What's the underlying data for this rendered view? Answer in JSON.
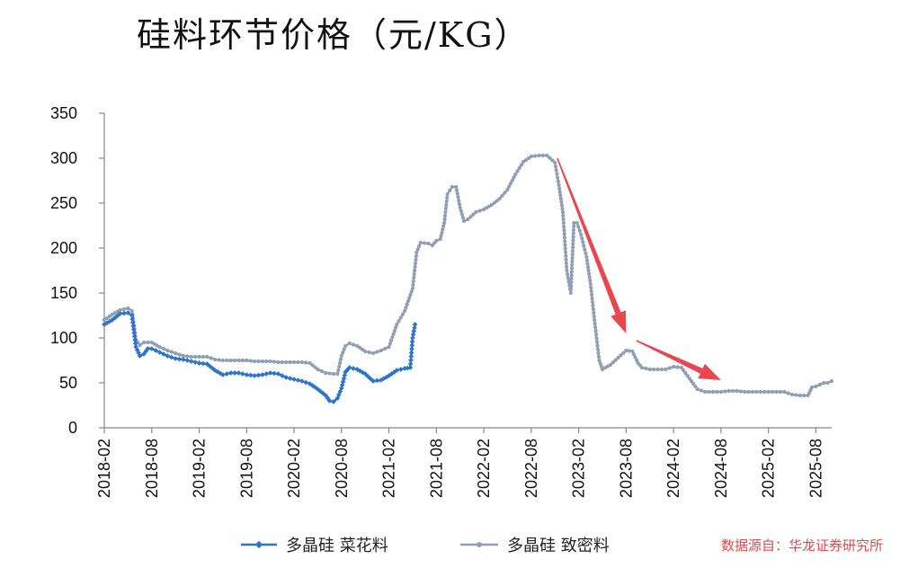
{
  "chart_data": {
    "type": "line",
    "title": "硅料环节价格（元/KG）",
    "xlabel": "",
    "ylabel": "",
    "ylim": [
      0,
      350
    ],
    "yticks": [
      0,
      50,
      100,
      150,
      200,
      250,
      300,
      350
    ],
    "x_start": "2018-02",
    "x_end": "2025-10",
    "xticks": [
      "2018-02",
      "2018-08",
      "2019-02",
      "2019-08",
      "2020-02",
      "2020-08",
      "2021-02",
      "2021-08",
      "2022-02",
      "2022-08",
      "2023-02",
      "2023-08",
      "2024-02",
      "2024-08",
      "2025-02",
      "2025-08"
    ],
    "grid": false,
    "legend_position": "bottom",
    "series": [
      {
        "name": "多晶硅 菜花料",
        "color": "#2E75C9",
        "marker": "diamond",
        "points": [
          [
            "2018-02",
            115
          ],
          [
            "2018-03",
            120
          ],
          [
            "2018-04",
            127
          ],
          [
            "2018-05",
            128
          ],
          [
            "2018-05.5",
            125
          ],
          [
            "2018-06",
            90
          ],
          [
            "2018-06.5",
            80
          ],
          [
            "2018-07",
            82
          ],
          [
            "2018-07.5",
            88
          ],
          [
            "2018-08",
            88
          ],
          [
            "2018-09",
            84
          ],
          [
            "2018-10",
            80
          ],
          [
            "2018-11",
            77
          ],
          [
            "2018-12",
            76
          ],
          [
            "2019-01",
            74
          ],
          [
            "2019-02",
            72
          ],
          [
            "2019-03",
            71
          ],
          [
            "2019-04",
            64
          ],
          [
            "2019-05",
            59
          ],
          [
            "2019-06",
            61
          ],
          [
            "2019-07",
            61
          ],
          [
            "2019-08",
            59
          ],
          [
            "2019-09",
            58
          ],
          [
            "2019-10",
            59
          ],
          [
            "2019-11",
            61
          ],
          [
            "2019-12",
            60
          ],
          [
            "2020-01",
            56
          ],
          [
            "2020-02",
            54
          ],
          [
            "2020-03",
            52
          ],
          [
            "2020-04",
            49
          ],
          [
            "2020-05",
            43
          ],
          [
            "2020-06",
            36
          ],
          [
            "2020-06.5",
            30
          ],
          [
            "2020-07",
            29
          ],
          [
            "2020-07.5",
            33
          ],
          [
            "2020-08",
            44
          ],
          [
            "2020-08.5",
            62
          ],
          [
            "2020-09",
            67
          ],
          [
            "2020-10",
            65
          ],
          [
            "2020-11",
            60
          ],
          [
            "2020-12",
            52
          ],
          [
            "2021-01",
            53
          ],
          [
            "2021-02",
            58
          ],
          [
            "2021-03",
            64
          ],
          [
            "2021-04",
            66
          ],
          [
            "2021-04.7",
            67
          ],
          [
            "2021-05",
            100
          ],
          [
            "2021-05.3",
            115
          ]
        ]
      },
      {
        "name": "多晶硅 致密料",
        "color": "#8FA0B5",
        "marker": "circle",
        "points": [
          [
            "2018-02",
            120
          ],
          [
            "2018-03",
            126
          ],
          [
            "2018-04",
            131
          ],
          [
            "2018-05",
            133
          ],
          [
            "2018-05.5",
            130
          ],
          [
            "2018-06",
            98
          ],
          [
            "2018-06.5",
            92
          ],
          [
            "2018-07",
            95
          ],
          [
            "2018-08",
            95
          ],
          [
            "2018-09",
            90
          ],
          [
            "2018-10",
            86
          ],
          [
            "2018-11",
            83
          ],
          [
            "2018-12",
            80
          ],
          [
            "2019-01",
            79
          ],
          [
            "2019-02",
            79
          ],
          [
            "2019-03",
            79
          ],
          [
            "2019-04",
            76
          ],
          [
            "2019-05",
            75
          ],
          [
            "2019-06",
            75
          ],
          [
            "2019-07",
            75
          ],
          [
            "2019-08",
            75
          ],
          [
            "2019-09",
            74
          ],
          [
            "2019-10",
            74
          ],
          [
            "2019-11",
            74
          ],
          [
            "2019-12",
            73
          ],
          [
            "2020-01",
            73
          ],
          [
            "2020-02",
            73
          ],
          [
            "2020-03",
            73
          ],
          [
            "2020-04",
            72
          ],
          [
            "2020-05",
            65
          ],
          [
            "2020-06",
            61
          ],
          [
            "2020-07",
            60
          ],
          [
            "2020-07.5",
            60
          ],
          [
            "2020-08",
            80
          ],
          [
            "2020-08.5",
            91
          ],
          [
            "2020-09",
            94
          ],
          [
            "2020-10",
            91
          ],
          [
            "2020-11",
            85
          ],
          [
            "2020-12",
            83
          ],
          [
            "2021-01",
            86
          ],
          [
            "2021-02",
            90
          ],
          [
            "2021-03",
            115
          ],
          [
            "2021-04",
            130
          ],
          [
            "2021-05",
            155
          ],
          [
            "2021-05.5",
            195
          ],
          [
            "2021-06",
            206
          ],
          [
            "2021-07",
            205
          ],
          [
            "2021-07.5",
            203
          ],
          [
            "2021-08",
            208
          ],
          [
            "2021-08.5",
            210
          ],
          [
            "2021-09",
            228
          ],
          [
            "2021-09.4",
            260
          ],
          [
            "2021-10",
            268
          ],
          [
            "2021-10.5",
            268
          ],
          [
            "2021-11",
            245
          ],
          [
            "2021-11.5",
            230
          ],
          [
            "2021-12",
            232
          ],
          [
            "2022-01",
            240
          ],
          [
            "2022-02",
            243
          ],
          [
            "2022-03",
            248
          ],
          [
            "2022-04",
            255
          ],
          [
            "2022-05",
            265
          ],
          [
            "2022-06",
            282
          ],
          [
            "2022-07",
            296
          ],
          [
            "2022-08",
            302
          ],
          [
            "2022-09",
            303
          ],
          [
            "2022-10",
            303
          ],
          [
            "2022-11",
            295
          ],
          [
            "2022-11.5",
            270
          ],
          [
            "2022-12",
            240
          ],
          [
            "2022-12.5",
            175
          ],
          [
            "2023-01",
            150
          ],
          [
            "2023-01.4",
            228
          ],
          [
            "2023-01.8",
            228
          ],
          [
            "2023-02.3",
            215
          ],
          [
            "2023-03",
            190
          ],
          [
            "2023-03.5",
            160
          ],
          [
            "2023-04",
            120
          ],
          [
            "2023-04.6",
            75
          ],
          [
            "2023-05",
            65
          ],
          [
            "2023-06",
            70
          ],
          [
            "2023-07",
            78
          ],
          [
            "2023-08",
            86
          ],
          [
            "2023-08.8",
            85
          ],
          [
            "2023-09.5",
            72
          ],
          [
            "2023-10",
            67
          ],
          [
            "2023-11",
            65
          ],
          [
            "2023-12",
            65
          ],
          [
            "2024-01",
            65
          ],
          [
            "2024-02",
            68
          ],
          [
            "2024-03",
            67
          ],
          [
            "2024-04",
            55
          ],
          [
            "2024-05",
            43
          ],
          [
            "2024-06",
            40
          ],
          [
            "2024-07",
            40
          ],
          [
            "2024-08",
            40
          ],
          [
            "2024-09",
            41
          ],
          [
            "2024-10",
            41
          ],
          [
            "2024-11",
            40
          ],
          [
            "2024-12",
            40
          ],
          [
            "2025-01",
            40
          ],
          [
            "2025-02",
            40
          ],
          [
            "2025-03",
            40
          ],
          [
            "2025-04",
            40
          ],
          [
            "2025-05",
            37
          ],
          [
            "2025-06",
            36
          ],
          [
            "2025-07",
            36
          ],
          [
            "2025-07.5",
            45
          ],
          [
            "2025-08",
            46
          ],
          [
            "2025-09",
            50
          ],
          [
            "2025-09.5",
            50
          ],
          [
            "2025-10",
            52
          ]
        ]
      }
    ],
    "annotations": [
      {
        "type": "arrow",
        "color": "#E8474D",
        "from": [
          "2022-11.3",
          300
        ],
        "to": [
          "2023-08",
          105
        ]
      },
      {
        "type": "arrow",
        "color": "#E8474D",
        "from": [
          "2023-09.3",
          97
        ],
        "to": [
          "2024-08",
          53
        ]
      }
    ]
  },
  "legend": {
    "items": [
      "多晶硅 菜花料",
      "多晶硅 致密料"
    ]
  },
  "source": {
    "text": "数据源自：华龙证券研究所",
    "color": "#E8474D"
  },
  "colors": {
    "axis": "#888888",
    "text": "#111111"
  }
}
